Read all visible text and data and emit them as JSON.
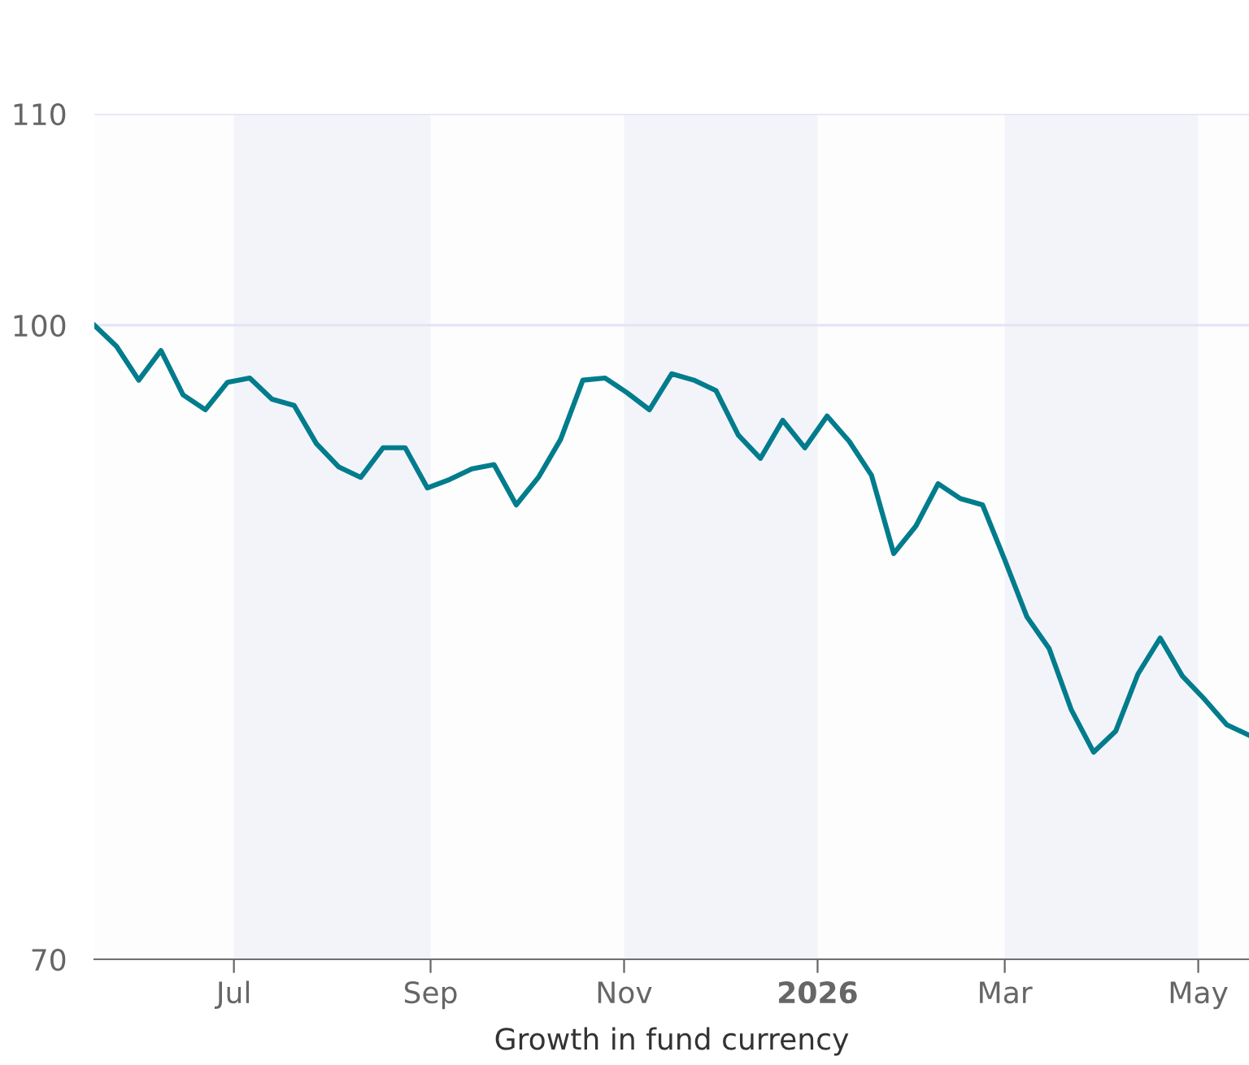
{
  "chart_data": {
    "type": "line",
    "xlabel": "Growth in fund currency",
    "x": [
      "2025-05-18",
      "2025-05-25",
      "2025-06-01",
      "2025-06-08",
      "2025-06-15",
      "2025-06-22",
      "2025-06-29",
      "2025-07-06",
      "2025-07-13",
      "2025-07-20",
      "2025-07-27",
      "2025-08-03",
      "2025-08-10",
      "2025-08-17",
      "2025-08-24",
      "2025-08-31",
      "2025-09-07",
      "2025-09-14",
      "2025-09-21",
      "2025-09-28",
      "2025-10-05",
      "2025-10-12",
      "2025-10-19",
      "2025-10-26",
      "2025-11-02",
      "2025-11-09",
      "2025-11-16",
      "2025-11-23",
      "2025-11-30",
      "2025-12-07",
      "2025-12-14",
      "2025-12-21",
      "2025-12-28",
      "2026-01-04",
      "2026-01-11",
      "2026-01-18",
      "2026-01-25",
      "2026-02-01",
      "2026-02-08",
      "2026-02-15",
      "2026-02-22",
      "2026-03-01",
      "2026-03-08",
      "2026-03-15",
      "2026-03-22",
      "2026-03-29",
      "2026-04-05",
      "2026-04-12",
      "2026-04-19",
      "2026-04-26",
      "2026-05-03",
      "2026-05-10",
      "2026-05-17"
    ],
    "series": [
      {
        "color": "#007c8c",
        "values": [
          100.0,
          99.0,
          97.4,
          98.8,
          96.7,
          96.0,
          97.3,
          97.5,
          96.5,
          96.2,
          94.4,
          93.3,
          92.8,
          94.2,
          94.2,
          92.3,
          92.7,
          93.2,
          93.4,
          91.5,
          92.8,
          94.6,
          97.4,
          97.5,
          96.8,
          96.0,
          97.7,
          97.4,
          96.9,
          94.8,
          93.7,
          95.5,
          94.2,
          95.7,
          94.5,
          92.9,
          89.2,
          90.5,
          92.5,
          91.8,
          91.5,
          88.9,
          86.2,
          84.7,
          81.8,
          79.8,
          80.8,
          83.5,
          85.2,
          83.4,
          82.3,
          81.1,
          80.6
        ]
      }
    ],
    "xlim": [
      "2025-05-18",
      "2026-05-17"
    ],
    "xticks": [
      {
        "value": "2025-07-01",
        "label": "Jul"
      },
      {
        "value": "2025-09-01",
        "label": "Sep"
      },
      {
        "value": "2025-11-01",
        "label": "Nov"
      },
      {
        "value": "2026-01-01",
        "label": "2026"
      },
      {
        "value": "2026-03-01",
        "label": "Mar"
      },
      {
        "value": "2026-05-01",
        "label": "May"
      }
    ],
    "ylim": [
      70,
      110
    ],
    "yticks": [
      70,
      100,
      110
    ],
    "bands": [
      {
        "axis": "x",
        "from": "2025-07-01",
        "to": "2025-09-01",
        "color": "#f3f4fa"
      },
      {
        "axis": "x",
        "from": "2025-11-01",
        "to": "2026-01-01",
        "color": "#f3f4fa"
      },
      {
        "axis": "x",
        "from": "2026-03-01",
        "to": "2026-05-01",
        "color": "#f3f4fa"
      }
    ],
    "grid": "y",
    "marker": "none",
    "line_style": "solid"
  }
}
